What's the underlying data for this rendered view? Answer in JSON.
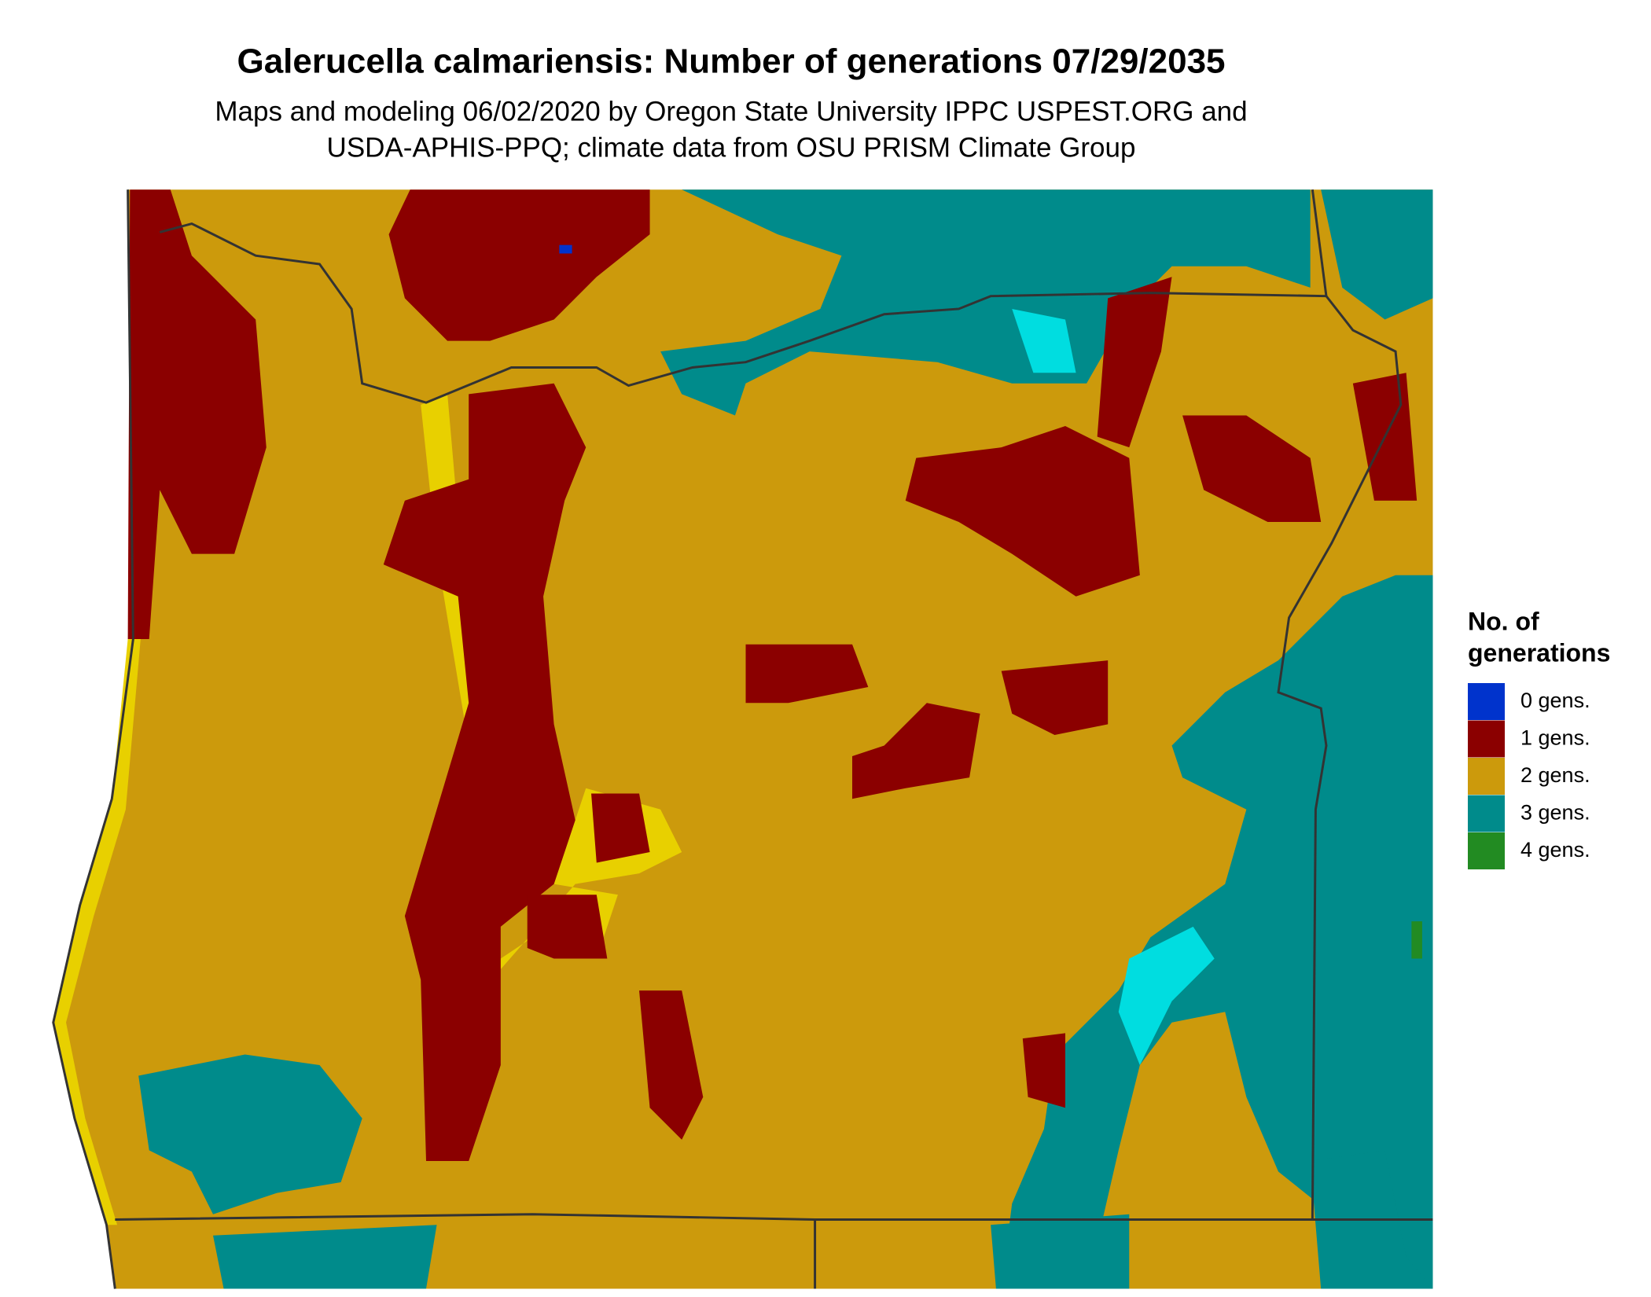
{
  "title": "Galerucella calmariensis: Number of generations 07/29/2035",
  "subtitle": [
    "Maps and modeling 06/02/2020 by Oregon State University IPPC USPEST.ORG and",
    "USDA-APHIS-PPQ; climate data from OSU PRISM Climate Group"
  ],
  "legend": {
    "title": [
      "No. of",
      "generations"
    ],
    "items": [
      {
        "label": "0 gens.",
        "color": "#0033cc"
      },
      {
        "label": "1 gens.",
        "color": "#8b0000"
      },
      {
        "label": "2 gens.",
        "color": "#cc9a0c"
      },
      {
        "label": "3 gens.",
        "color": "#008b8b"
      },
      {
        "label": "4 gens.",
        "color": "#228b22"
      }
    ]
  }
}
